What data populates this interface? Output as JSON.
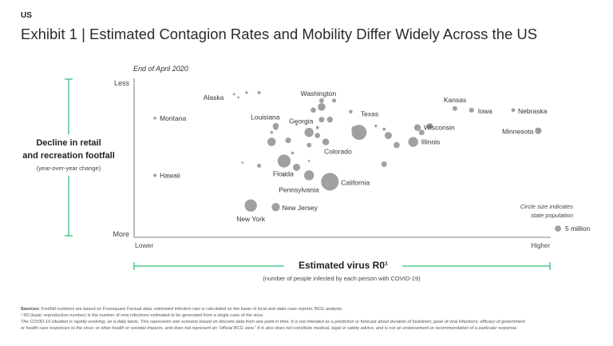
{
  "header": {
    "region": "US",
    "title": "Exhibit 1 | Estimated Contagion Rates and Mobility Differ Widely Across the US"
  },
  "chart_data": {
    "type": "scatter",
    "title": "Estimated Contagion Rates and Mobility Differ Widely Across the US",
    "subtitle": "End of April 2020",
    "xlabel": "Estimated virus R0¹",
    "xlabel_sub": "(number of people infected by each person with COVID-19)",
    "x_low": "Lower",
    "x_high": "Higher",
    "ylabel_line1": "Decline in retail",
    "ylabel_line2": "and recreation footfall",
    "ylabel_sub": "(year-over-year change)",
    "y_top": "Less",
    "y_bottom": "More",
    "xlim": [
      0,
      100
    ],
    "ylim": [
      0,
      100
    ],
    "size_unit": "million people",
    "legend": {
      "note_line1": "Circle size indicates",
      "note_line2": "state population",
      "label": "5 million",
      "value": 5,
      "position": "bottom-right"
    },
    "points": [
      {
        "name": "Montana",
        "x": 5,
        "y": 75,
        "pop": 1.1,
        "label": "Montana"
      },
      {
        "name": "Hawaii",
        "x": 5,
        "y": 39,
        "pop": 1.4,
        "label": "Hawaii"
      },
      {
        "name": "Alaska",
        "x": 24,
        "y": 90,
        "pop": 0.7,
        "label": "Alaska"
      },
      {
        "name": "Washington",
        "x": 45,
        "y": 82,
        "pop": 7.6,
        "label": "Washington"
      },
      {
        "name": "Louisiana",
        "x": 34,
        "y": 70,
        "pop": 4.6,
        "label": "Louisiana"
      },
      {
        "name": "Georgia",
        "x": 42,
        "y": 66,
        "pop": 10.6,
        "label": "Georgia"
      },
      {
        "name": "Texas",
        "x": 54,
        "y": 66,
        "pop": 29,
        "label": "Texas"
      },
      {
        "name": "Colorado",
        "x": 46,
        "y": 60,
        "pop": 5.8,
        "label": "Colorado"
      },
      {
        "name": "Kansas",
        "x": 77,
        "y": 81,
        "pop": 2.9,
        "label": "Kansas"
      },
      {
        "name": "Iowa",
        "x": 81,
        "y": 80,
        "pop": 3.2,
        "label": "Iowa"
      },
      {
        "name": "Nebraska",
        "x": 91,
        "y": 80,
        "pop": 1.9,
        "label": "Nebraska"
      },
      {
        "name": "Wisconsin",
        "x": 68,
        "y": 69,
        "pop": 5.8,
        "label": "Wisconsin"
      },
      {
        "name": "Illinois",
        "x": 67,
        "y": 60,
        "pop": 12.7,
        "label": "Illinois"
      },
      {
        "name": "Minnesota",
        "x": 97,
        "y": 67,
        "pop": 5.6,
        "label": "Minnesota"
      },
      {
        "name": "Florida",
        "x": 36,
        "y": 48,
        "pop": 21.5,
        "label": "Florida"
      },
      {
        "name": "Pennsylvania",
        "x": 42,
        "y": 39,
        "pop": 12.8,
        "label": "Pennsylvania"
      },
      {
        "name": "California",
        "x": 47,
        "y": 35,
        "pop": 39.5,
        "label": "California"
      },
      {
        "name": "New York",
        "x": 28,
        "y": 20,
        "pop": 19.5,
        "label": "New York"
      },
      {
        "name": "New Jersey",
        "x": 34,
        "y": 19,
        "pop": 8.9,
        "label": "New Jersey"
      },
      {
        "name": "",
        "x": 25,
        "y": 88,
        "pop": 0.6
      },
      {
        "name": "",
        "x": 27,
        "y": 91,
        "pop": 0.9
      },
      {
        "name": "",
        "x": 30,
        "y": 91,
        "pop": 1.3
      },
      {
        "name": "",
        "x": 45,
        "y": 86,
        "pop": 3.0
      },
      {
        "name": "",
        "x": 48,
        "y": 86,
        "pop": 2.0
      },
      {
        "name": "",
        "x": 43,
        "y": 80,
        "pop": 3.5
      },
      {
        "name": "",
        "x": 45,
        "y": 74,
        "pop": 4.0
      },
      {
        "name": "",
        "x": 47,
        "y": 74,
        "pop": 4.5
      },
      {
        "name": "",
        "x": 52,
        "y": 79,
        "pop": 1.8
      },
      {
        "name": "",
        "x": 34,
        "y": 69,
        "pop": 3.0
      },
      {
        "name": "",
        "x": 33,
        "y": 66,
        "pop": 1.0
      },
      {
        "name": "",
        "x": 39,
        "y": 71,
        "pop": 0.6
      },
      {
        "name": "",
        "x": 37,
        "y": 61,
        "pop": 4.0
      },
      {
        "name": "",
        "x": 33,
        "y": 60,
        "pop": 9.0
      },
      {
        "name": "",
        "x": 44,
        "y": 64,
        "pop": 3.5
      },
      {
        "name": "",
        "x": 44,
        "y": 69,
        "pop": 1.2
      },
      {
        "name": "",
        "x": 42,
        "y": 58,
        "pop": 2.8
      },
      {
        "name": "",
        "x": 38,
        "y": 53,
        "pop": 1.0
      },
      {
        "name": "",
        "x": 42,
        "y": 48,
        "pop": 0.6
      },
      {
        "name": "",
        "x": 30,
        "y": 45,
        "pop": 2.0
      },
      {
        "name": "",
        "x": 26,
        "y": 47,
        "pop": 0.4
      },
      {
        "name": "",
        "x": 39,
        "y": 44,
        "pop": 6.6
      },
      {
        "name": "",
        "x": 36,
        "y": 39,
        "pop": 0.8
      },
      {
        "name": "",
        "x": 60,
        "y": 46,
        "pop": 4.0
      },
      {
        "name": "",
        "x": 60,
        "y": 68,
        "pop": 1.2
      },
      {
        "name": "",
        "x": 58,
        "y": 70,
        "pop": 0.9
      },
      {
        "name": "",
        "x": 61,
        "y": 64,
        "pop": 6.5
      },
      {
        "name": "",
        "x": 63,
        "y": 58,
        "pop": 4.6
      },
      {
        "name": "",
        "x": 69,
        "y": 66,
        "pop": 3.9
      },
      {
        "name": "",
        "x": 71,
        "y": 70,
        "pop": 4.2
      },
      {
        "name": "",
        "x": 53,
        "y": 68,
        "pop": 6.0
      }
    ]
  },
  "footer": {
    "sources_label": "Sources:",
    "sources_text": " Footfall numbers are based on Foursquare Factual data; estimated infection rate is calculated on the basis of local and state case reports; BCG analysis.",
    "note1": "¹ R0 (basic reproduction number) is the number of new infections estimated to be generated from a single case of the virus.",
    "note2": "The COVID-19 situation is rapidly evolving, on a daily basis. This represents one scenario based on discrete data from one point in time. It is not intended as a prediction or forecast about duration of lockdown; peak of viral infections; efficacy of government",
    "note3": "or health care responses to the virus; or other health or societal impacts, and does not represent an “official BCG view.” It is also does not constitute medical, legal or safety advice, and is not an endorsement or recommendation of a particular response."
  },
  "colors": {
    "dot": "#a0a0a0",
    "accent": "#32c17a",
    "axis": "#555555",
    "text": "#333333"
  }
}
